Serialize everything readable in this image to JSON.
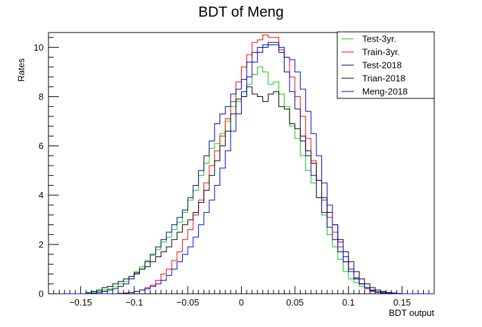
{
  "chart_data": {
    "type": "line",
    "style": "step-histogram",
    "title": "BDT of Meng",
    "xlabel": "BDT output",
    "ylabel": "Rates",
    "xlim": [
      -0.18,
      0.18
    ],
    "ylim": [
      0,
      10.6
    ],
    "x_ticks": [
      -0.15,
      -0.1,
      -0.05,
      0,
      0.05,
      0.1,
      0.15
    ],
    "x_tick_labels": [
      "−0.15",
      "−0.1",
      "−0.05",
      "0",
      "0.05",
      "0.1",
      "0.15"
    ],
    "y_ticks": [
      0,
      2,
      4,
      6,
      8,
      10
    ],
    "y_tick_labels": [
      "0",
      "2",
      "4",
      "6",
      "8",
      "10"
    ],
    "grid": false,
    "legend_position": "top-right",
    "bin_edges": [
      -0.18,
      -0.175,
      -0.17,
      -0.165,
      -0.16,
      -0.155,
      -0.15,
      -0.145,
      -0.14,
      -0.135,
      -0.13,
      -0.125,
      -0.12,
      -0.115,
      -0.11,
      -0.105,
      -0.1,
      -0.095,
      -0.09,
      -0.085,
      -0.08,
      -0.075,
      -0.07,
      -0.065,
      -0.06,
      -0.055,
      -0.05,
      -0.045,
      -0.04,
      -0.035,
      -0.03,
      -0.025,
      -0.02,
      -0.015,
      -0.01,
      -0.005,
      0,
      0.005,
      0.01,
      0.015,
      0.02,
      0.025,
      0.03,
      0.035,
      0.04,
      0.045,
      0.05,
      0.055,
      0.06,
      0.065,
      0.07,
      0.075,
      0.08,
      0.085,
      0.09,
      0.095,
      0.1,
      0.105,
      0.11,
      0.115,
      0.12,
      0.125,
      0.13,
      0.135,
      0.14,
      0.145,
      0.15,
      0.155,
      0.16,
      0.165,
      0.17,
      0.175,
      0.18
    ],
    "series": [
      {
        "name": "Test-3yr.",
        "color": "#00cc00",
        "values": [
          0,
          0,
          0,
          0,
          0,
          0,
          0,
          0.02,
          0.05,
          0.1,
          0.15,
          0.2,
          0.28,
          0.4,
          0.5,
          0.7,
          0.9,
          1.1,
          1.35,
          1.55,
          1.8,
          2.1,
          2.3,
          2.6,
          2.9,
          3.3,
          3.8,
          4.2,
          4.8,
          5.3,
          5.9,
          6.1,
          6.5,
          7.0,
          7.6,
          7.8,
          8.0,
          8.5,
          8.9,
          9.2,
          9.0,
          8.5,
          8.6,
          8.1,
          7.6,
          6.8,
          6.3,
          5.6,
          5.0,
          4.5,
          3.9,
          3.2,
          2.4,
          1.9,
          1.4,
          0.9,
          0.6,
          0.45,
          0.3,
          0.2,
          0.1,
          0.07,
          0.05,
          0.02,
          0.01,
          0,
          0,
          0,
          0,
          0,
          0,
          0
        ]
      },
      {
        "name": "Train-3yr.",
        "color": "#ff0000",
        "values": [
          0,
          0,
          0,
          0,
          0,
          0,
          0,
          0,
          0,
          0,
          0,
          0,
          0,
          0.02,
          0.03,
          0.05,
          0.1,
          0.15,
          0.25,
          0.35,
          0.55,
          0.8,
          1.0,
          1.35,
          1.7,
          2.2,
          2.6,
          3.2,
          3.8,
          4.5,
          5.2,
          5.8,
          6.4,
          7.1,
          7.8,
          8.6,
          9.2,
          9.7,
          10.2,
          10.3,
          10.5,
          10.4,
          10.4,
          9.9,
          9.6,
          8.8,
          8.0,
          7.2,
          6.3,
          5.4,
          4.6,
          3.8,
          3.1,
          2.5,
          1.9,
          1.3,
          0.9,
          0.6,
          0.4,
          0.2,
          0.1,
          0.06,
          0.04,
          0.02,
          0.01,
          0,
          0,
          0,
          0,
          0,
          0,
          0
        ]
      },
      {
        "name": "Test-2018",
        "color": "#00008b",
        "values": [
          0,
          0,
          0,
          0,
          0,
          0,
          0,
          0,
          0.02,
          0.05,
          0.1,
          0.15,
          0.2,
          0.3,
          0.4,
          0.6,
          0.8,
          1.0,
          1.3,
          1.6,
          1.9,
          2.2,
          2.5,
          2.8,
          3.1,
          3.4,
          3.9,
          4.4,
          5.0,
          5.6,
          6.2,
          6.9,
          7.3,
          7.6,
          8.1,
          8.3,
          8.7,
          9.4,
          9.8,
          10.0,
          10.0,
          10.1,
          10.1,
          9.8,
          9.0,
          8.2,
          7.5,
          6.4,
          5.6,
          4.8,
          3.9,
          3.3,
          2.7,
          2.2,
          1.7,
          1.3,
          0.9,
          0.6,
          0.4,
          0.25,
          0.15,
          0.08,
          0.05,
          0.03,
          0.01,
          0,
          0,
          0,
          0,
          0,
          0,
          0
        ]
      },
      {
        "name": "Trian-2018",
        "color": "#000000",
        "values": [
          0,
          0,
          0,
          0,
          0,
          0,
          0,
          0.05,
          0.1,
          0.15,
          0.25,
          0.3,
          0.4,
          0.5,
          0.6,
          0.7,
          0.85,
          1.0,
          1.1,
          1.3,
          1.5,
          1.7,
          1.9,
          2.2,
          2.5,
          2.8,
          3.0,
          3.3,
          3.7,
          4.2,
          4.8,
          5.4,
          6.0,
          6.6,
          7.3,
          7.9,
          8.0,
          8.4,
          8.1,
          8.0,
          7.8,
          8.1,
          8.2,
          7.6,
          7.5,
          6.9,
          6.7,
          6.2,
          5.8,
          5.3,
          4.6,
          3.9,
          3.3,
          2.8,
          2.2,
          1.7,
          1.3,
          0.9,
          0.6,
          0.4,
          0.25,
          0.15,
          0.1,
          0.05,
          0.03,
          0.01,
          0,
          0,
          0,
          0,
          0,
          0
        ]
      },
      {
        "name": "Meng-2018",
        "color": "#0000cd",
        "values": [
          0,
          0,
          0,
          0,
          0,
          0,
          0,
          0,
          0,
          0,
          0,
          0,
          0,
          0,
          0.02,
          0.05,
          0.1,
          0.15,
          0.2,
          0.3,
          0.4,
          0.55,
          0.75,
          1.0,
          1.3,
          1.6,
          1.9,
          2.3,
          2.8,
          3.3,
          3.8,
          4.4,
          5.1,
          5.8,
          6.6,
          7.3,
          8.2,
          8.8,
          9.4,
          9.8,
          10.1,
          10.2,
          10.2,
          10.0,
          9.6,
          9.5,
          9.0,
          8.3,
          7.4,
          6.5,
          5.6,
          4.5,
          3.6,
          2.8,
          2.1,
          1.5,
          1.0,
          0.65,
          0.4,
          0.25,
          0.12,
          0.06,
          0.03,
          0.02,
          0.01,
          0,
          0,
          0,
          0,
          0,
          0,
          0
        ]
      }
    ]
  }
}
